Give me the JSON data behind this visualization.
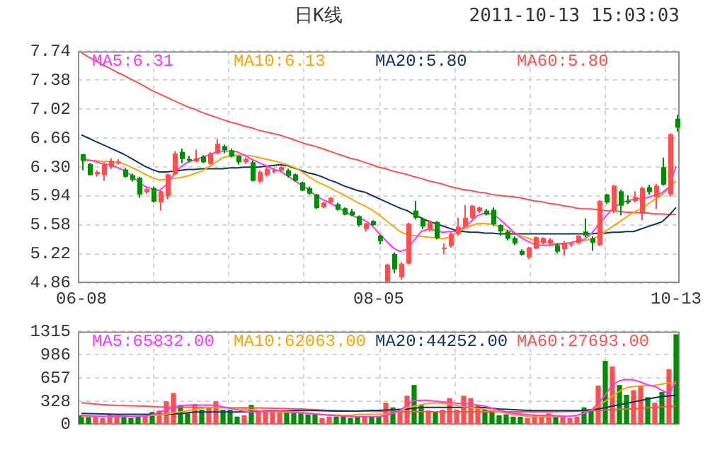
{
  "chart_data": [
    {
      "type": "candlestick",
      "title": "日K线",
      "subtitle": "2011-10-13 15:03:03",
      "categories": [
        "06-08",
        null,
        null,
        null,
        null,
        null,
        null,
        null,
        null,
        null,
        null,
        null,
        null,
        null,
        null,
        null,
        null,
        null,
        null,
        null,
        null,
        null,
        null,
        null,
        null,
        null,
        null,
        null,
        null,
        null,
        null,
        null,
        null,
        null,
        null,
        null,
        null,
        null,
        null,
        null,
        null,
        null,
        "08-05",
        null,
        null,
        null,
        null,
        null,
        null,
        null,
        null,
        null,
        null,
        null,
        null,
        null,
        null,
        null,
        null,
        null,
        null,
        null,
        null,
        null,
        null,
        null,
        null,
        null,
        null,
        null,
        null,
        null,
        null,
        null,
        null,
        null,
        null,
        null,
        null,
        null,
        null,
        null,
        null,
        null,
        "10-13"
      ],
      "ohlc": [
        [
          6.46,
          6.46,
          6.26,
          6.38
        ],
        [
          6.34,
          6.35,
          6.2,
          6.2
        ],
        [
          6.21,
          6.26,
          6.18,
          6.24
        ],
        [
          6.2,
          6.36,
          6.13,
          6.33
        ],
        [
          6.3,
          6.41,
          6.28,
          6.38
        ],
        [
          6.36,
          6.4,
          6.33,
          6.37
        ],
        [
          6.27,
          6.29,
          6.17,
          6.18
        ],
        [
          6.2,
          6.22,
          6.12,
          6.14
        ],
        [
          6.17,
          6.18,
          5.92,
          5.96
        ],
        [
          5.99,
          6.05,
          5.97,
          6.03
        ],
        [
          6.04,
          6.06,
          5.86,
          5.87
        ],
        [
          5.86,
          6.01,
          5.76,
          6.0
        ],
        [
          5.94,
          6.22,
          5.9,
          6.21
        ],
        [
          6.21,
          6.5,
          6.2,
          6.47
        ],
        [
          6.49,
          6.53,
          6.35,
          6.4
        ],
        [
          6.4,
          6.44,
          6.36,
          6.38
        ],
        [
          6.37,
          6.52,
          6.36,
          6.41
        ],
        [
          6.43,
          6.45,
          6.35,
          6.36
        ],
        [
          6.34,
          6.49,
          6.33,
          6.47
        ],
        [
          6.47,
          6.65,
          6.46,
          6.59
        ],
        [
          6.56,
          6.58,
          6.47,
          6.51
        ],
        [
          6.51,
          6.53,
          6.42,
          6.43
        ],
        [
          6.44,
          6.44,
          6.33,
          6.36
        ],
        [
          6.36,
          6.42,
          6.34,
          6.4
        ],
        [
          6.36,
          6.38,
          6.12,
          6.13
        ],
        [
          6.12,
          6.26,
          6.1,
          6.24
        ],
        [
          6.2,
          6.3,
          6.18,
          6.28
        ],
        [
          6.25,
          6.29,
          6.22,
          6.26
        ],
        [
          6.26,
          6.31,
          6.24,
          6.3
        ],
        [
          6.26,
          6.28,
          6.17,
          6.19
        ],
        [
          6.21,
          6.22,
          6.12,
          6.13
        ],
        [
          6.11,
          6.12,
          6.0,
          6.01
        ],
        [
          6.04,
          6.06,
          5.96,
          5.97
        ],
        [
          5.96,
          5.97,
          5.78,
          5.79
        ],
        [
          5.8,
          5.87,
          5.79,
          5.86
        ],
        [
          5.86,
          5.93,
          5.84,
          5.92
        ],
        [
          5.84,
          5.86,
          5.76,
          5.77
        ],
        [
          5.79,
          5.8,
          5.7,
          5.71
        ],
        [
          5.75,
          5.78,
          5.69,
          5.7
        ],
        [
          5.69,
          5.7,
          5.56,
          5.58
        ],
        [
          5.53,
          5.61,
          5.5,
          5.6
        ],
        [
          5.63,
          5.64,
          5.57,
          5.58
        ],
        [
          5.45,
          5.46,
          5.34,
          5.38
        ],
        [
          4.88,
          5.1,
          4.86,
          5.09
        ],
        [
          5.22,
          5.24,
          4.98,
          5.03
        ],
        [
          4.93,
          5.12,
          4.9,
          5.1
        ],
        [
          5.1,
          5.61,
          5.09,
          5.6
        ],
        [
          5.76,
          5.88,
          5.65,
          5.67
        ],
        [
          5.66,
          5.67,
          5.53,
          5.56
        ],
        [
          5.52,
          5.64,
          5.5,
          5.62
        ],
        [
          5.62,
          5.63,
          5.4,
          5.42
        ],
        [
          5.29,
          5.35,
          5.22,
          5.3
        ],
        [
          5.32,
          5.49,
          5.3,
          5.47
        ],
        [
          5.47,
          5.67,
          5.45,
          5.56
        ],
        [
          5.56,
          5.83,
          5.55,
          5.67
        ],
        [
          5.67,
          5.83,
          5.65,
          5.82
        ],
        [
          5.75,
          5.81,
          5.73,
          5.8
        ],
        [
          5.76,
          5.78,
          5.7,
          5.71
        ],
        [
          5.77,
          5.8,
          5.57,
          5.59
        ],
        [
          5.58,
          5.59,
          5.45,
          5.5
        ],
        [
          5.5,
          5.52,
          5.39,
          5.41
        ],
        [
          5.42,
          5.44,
          5.33,
          5.35
        ],
        [
          5.26,
          5.28,
          5.2,
          5.21
        ],
        [
          5.18,
          5.31,
          5.16,
          5.3
        ],
        [
          5.29,
          5.44,
          5.28,
          5.43
        ],
        [
          5.36,
          5.43,
          5.34,
          5.42
        ],
        [
          5.35,
          5.42,
          5.33,
          5.4
        ],
        [
          5.33,
          5.35,
          5.23,
          5.25
        ],
        [
          5.28,
          5.38,
          5.2,
          5.36
        ],
        [
          5.34,
          5.37,
          5.31,
          5.35
        ],
        [
          5.36,
          5.47,
          5.34,
          5.45
        ],
        [
          5.5,
          5.66,
          5.43,
          5.45
        ],
        [
          5.42,
          5.44,
          5.26,
          5.36
        ],
        [
          5.33,
          5.89,
          5.32,
          5.88
        ],
        [
          5.96,
          5.97,
          5.84,
          5.86
        ],
        [
          5.75,
          6.08,
          5.73,
          6.07
        ],
        [
          6.0,
          6.02,
          5.7,
          5.82
        ],
        [
          5.88,
          5.95,
          5.84,
          5.86
        ],
        [
          5.88,
          6.0,
          5.86,
          5.93
        ],
        [
          5.73,
          6.06,
          5.64,
          6.04
        ],
        [
          6.05,
          6.08,
          5.96,
          5.99
        ],
        [
          5.93,
          6.09,
          5.78,
          6.07
        ],
        [
          6.3,
          6.42,
          6.07,
          6.08
        ],
        [
          5.96,
          6.72,
          5.93,
          6.71
        ],
        [
          6.9,
          6.95,
          6.74,
          6.79
        ]
      ],
      "colors": [
        "#008c00",
        "#008c00",
        "#ff4f4f",
        "#ff4f4f",
        "#ff4f4f",
        "#ff4f4f",
        "#008c00",
        "#008c00",
        "#008c00",
        "#ff4f4f",
        "#008c00",
        "#ff4f4f",
        "#ff4f4f",
        "#ff4f4f",
        "#008c00",
        "#008c00",
        "#ff4f4f",
        "#008c00",
        "#ff4f4f",
        "#ff4f4f",
        "#008c00",
        "#008c00",
        "#008c00",
        "#ff4f4f",
        "#008c00",
        "#ff4f4f",
        "#ff4f4f",
        "#ff4f4f",
        "#ff4f4f",
        "#008c00",
        "#008c00",
        "#008c00",
        "#008c00",
        "#008c00",
        "#ff4f4f",
        "#ff4f4f",
        "#008c00",
        "#008c00",
        "#008c00",
        "#008c00",
        "#ff4f4f",
        "#008c00",
        "#008c00",
        "#ff4f4f",
        "#008c00",
        "#ff4f4f",
        "#ff4f4f",
        "#008c00",
        "#008c00",
        "#ff4f4f",
        "#008c00",
        "#ff4f4f",
        "#ff4f4f",
        "#ff4f4f",
        "#ff4f4f",
        "#ff4f4f",
        "#ff4f4f",
        "#008c00",
        "#008c00",
        "#008c00",
        "#008c00",
        "#008c00",
        "#008c00",
        "#ff4f4f",
        "#ff4f4f",
        "#ff4f4f",
        "#ff4f4f",
        "#008c00",
        "#ff4f4f",
        "#ff4f4f",
        "#ff4f4f",
        "#008c00",
        "#008c00",
        "#ff4f4f",
        "#008c00",
        "#ff4f4f",
        "#008c00",
        "#008c00",
        "#ff4f4f",
        "#ff4f4f",
        "#008c00",
        "#ff4f4f",
        "#008c00",
        "#ff4f4f",
        "#008c00"
      ],
      "series": [
        {
          "type": "line",
          "name": "MA5:6.31",
          "color": "#ff33ff",
          "values": [
            6.41,
            6.39,
            6.37,
            6.34,
            6.33,
            6.3,
            6.26,
            6.2,
            6.12,
            6.06,
            6.03,
            6.01,
            6.08,
            6.2,
            6.3,
            6.36,
            6.39,
            6.42,
            6.45,
            6.49,
            6.5,
            6.5,
            6.49,
            6.45,
            6.4,
            6.36,
            6.32,
            6.28,
            6.25,
            6.2,
            6.14,
            6.08,
            6.03,
            5.95,
            5.9,
            5.86,
            5.81,
            5.76,
            5.71,
            5.67,
            5.64,
            5.58,
            5.48,
            5.39,
            5.3,
            5.25,
            5.28,
            5.39,
            5.5,
            5.53,
            5.51,
            5.49,
            5.5,
            5.5,
            5.55,
            5.62,
            5.7,
            5.73,
            5.72,
            5.66,
            5.58,
            5.5,
            5.43,
            5.38,
            5.34,
            5.33,
            5.33,
            5.34,
            5.35,
            5.36,
            5.38,
            5.4,
            5.47,
            5.58,
            5.68,
            5.78,
            5.84,
            5.88,
            5.9,
            5.91,
            5.92,
            5.95,
            5.98,
            6.05,
            6.31
          ]
        },
        {
          "type": "line",
          "name": "MA10:6.13",
          "color": "#ffa200",
          "values": [
            6.37,
            6.38,
            6.38,
            6.37,
            6.37,
            6.36,
            6.34,
            6.3,
            6.26,
            6.21,
            6.17,
            6.14,
            6.15,
            6.16,
            6.17,
            6.19,
            6.22,
            6.25,
            6.3,
            6.36,
            6.42,
            6.44,
            6.45,
            6.45,
            6.44,
            6.42,
            6.4,
            6.38,
            6.36,
            6.33,
            6.3,
            6.25,
            6.19,
            6.13,
            6.09,
            6.05,
            6.0,
            5.96,
            5.91,
            5.86,
            5.82,
            5.77,
            5.71,
            5.64,
            5.57,
            5.5,
            5.46,
            5.45,
            5.44,
            5.43,
            5.42,
            5.41,
            5.43,
            5.48,
            5.53,
            5.57,
            5.6,
            5.6,
            5.59,
            5.56,
            5.52,
            5.49,
            5.45,
            5.42,
            5.39,
            5.37,
            5.36,
            5.35,
            5.35,
            5.36,
            5.38,
            5.39,
            5.4,
            5.44,
            5.5,
            5.56,
            5.62,
            5.68,
            5.74,
            5.78,
            5.84,
            5.9,
            5.95,
            6.04,
            6.13
          ]
        },
        {
          "type": "line",
          "name": "MA20:5.80",
          "color": "#0c3566",
          "values": [
            6.7,
            6.66,
            6.62,
            6.58,
            6.54,
            6.5,
            6.46,
            6.41,
            6.36,
            6.31,
            6.27,
            6.24,
            6.24,
            6.25,
            6.26,
            6.27,
            6.27,
            6.28,
            6.28,
            6.28,
            6.28,
            6.29,
            6.29,
            6.3,
            6.3,
            6.3,
            6.31,
            6.32,
            6.33,
            6.32,
            6.29,
            6.26,
            6.23,
            6.21,
            6.18,
            6.14,
            6.11,
            6.07,
            6.04,
            6.01,
            5.99,
            5.95,
            5.91,
            5.87,
            5.83,
            5.79,
            5.76,
            5.71,
            5.67,
            5.63,
            5.6,
            5.57,
            5.54,
            5.51,
            5.5,
            5.49,
            5.49,
            5.48,
            5.48,
            5.47,
            5.47,
            5.47,
            5.47,
            5.47,
            5.47,
            5.47,
            5.47,
            5.47,
            5.47,
            5.47,
            5.47,
            5.47,
            5.47,
            5.48,
            5.48,
            5.49,
            5.49,
            5.5,
            5.5,
            5.53,
            5.56,
            5.59,
            5.62,
            5.7,
            5.8
          ]
        },
        {
          "type": "line",
          "name": "MA60:5.80",
          "color": "#ff4f4f",
          "values": [
            7.72,
            7.67,
            7.62,
            7.57,
            7.53,
            7.48,
            7.44,
            7.39,
            7.35,
            7.3,
            7.25,
            7.21,
            7.17,
            7.13,
            7.09,
            7.05,
            7.02,
            6.98,
            6.95,
            6.92,
            6.89,
            6.86,
            6.84,
            6.81,
            6.79,
            6.76,
            6.74,
            6.72,
            6.7,
            6.67,
            6.64,
            6.61,
            6.58,
            6.56,
            6.53,
            6.5,
            6.47,
            6.44,
            6.41,
            6.39,
            6.36,
            6.33,
            6.3,
            6.28,
            6.25,
            6.23,
            6.21,
            6.18,
            6.16,
            6.13,
            6.11,
            6.09,
            6.06,
            6.04,
            6.02,
            6.01,
            5.99,
            5.98,
            5.96,
            5.95,
            5.94,
            5.93,
            5.92,
            5.9,
            5.88,
            5.87,
            5.85,
            5.84,
            5.82,
            5.81,
            5.79,
            5.78,
            5.78,
            5.77,
            5.76,
            5.76,
            5.75,
            5.74,
            5.74,
            5.73,
            5.73,
            5.72,
            5.72,
            5.71,
            5.71
          ]
        }
      ],
      "ylim": [
        4.86,
        7.74
      ],
      "yticks": [
        4.86,
        5.22,
        5.58,
        5.94,
        {
          "value": 6.3,
          "label": "6.30"
        },
        6.66,
        7.02,
        7.38,
        7.74
      ],
      "grid": true,
      "legend": "top",
      "marker": "none"
    },
    {
      "type": "bar",
      "categories": [
        null,
        null,
        null,
        null,
        null,
        null,
        null,
        null,
        null,
        null,
        null,
        null,
        null,
        null,
        null,
        null,
        null,
        null,
        null,
        null,
        null,
        null,
        null,
        null,
        null,
        null,
        null,
        null,
        null,
        null,
        null,
        null,
        null,
        null,
        null,
        null,
        null,
        null,
        null,
        null,
        null,
        null,
        null,
        null,
        null,
        null,
        null,
        null,
        null,
        null,
        null,
        null,
        null,
        null,
        null,
        null,
        null,
        null,
        null,
        null,
        null,
        null,
        null,
        null,
        null,
        null,
        null,
        null,
        null,
        null,
        null,
        null,
        null,
        null,
        null,
        null,
        null,
        null,
        null,
        null,
        null,
        null,
        null,
        null,
        null
      ],
      "series": [
        {
          "type": "bar",
          "values": [
            131,
            131,
            112,
            92,
            144,
            144,
            112,
            92,
            118,
            131,
            177,
            197,
            328,
            446,
            276,
            157,
            289,
            210,
            243,
            328,
            210,
            210,
            112,
            131,
            276,
            197,
            197,
            197,
            197,
            177,
            177,
            177,
            144,
            144,
            92,
            112,
            112,
            112,
            92,
            112,
            112,
            112,
            112,
            308,
            243,
            210,
            407,
            558,
            276,
            197,
            177,
            210,
            374,
            210,
            407,
            374,
            276,
            210,
            210,
            131,
            144,
            112,
            112,
            92,
            144,
            112,
            157,
            112,
            112,
            92,
            112,
            243,
            210,
            551,
            899,
            820,
            558,
            420,
            485,
            551,
            387,
            308,
            459,
            781,
            1273
          ],
          "colors": [
            "#008c00",
            "#008c00",
            "#ff4f4f",
            "#ff4f4f",
            "#ff4f4f",
            "#ff4f4f",
            "#008c00",
            "#008c00",
            "#008c00",
            "#ff4f4f",
            "#008c00",
            "#ff4f4f",
            "#ff4f4f",
            "#ff4f4f",
            "#008c00",
            "#008c00",
            "#ff4f4f",
            "#008c00",
            "#ff4f4f",
            "#ff4f4f",
            "#008c00",
            "#008c00",
            "#008c00",
            "#ff4f4f",
            "#008c00",
            "#ff4f4f",
            "#ff4f4f",
            "#ff4f4f",
            "#ff4f4f",
            "#008c00",
            "#008c00",
            "#008c00",
            "#008c00",
            "#008c00",
            "#ff4f4f",
            "#ff4f4f",
            "#008c00",
            "#008c00",
            "#008c00",
            "#008c00",
            "#ff4f4f",
            "#008c00",
            "#008c00",
            "#ff4f4f",
            "#008c00",
            "#ff4f4f",
            "#ff4f4f",
            "#008c00",
            "#008c00",
            "#ff4f4f",
            "#008c00",
            "#ff4f4f",
            "#ff4f4f",
            "#ff4f4f",
            "#ff4f4f",
            "#ff4f4f",
            "#ff4f4f",
            "#008c00",
            "#008c00",
            "#008c00",
            "#008c00",
            "#008c00",
            "#008c00",
            "#ff4f4f",
            "#ff4f4f",
            "#ff4f4f",
            "#ff4f4f",
            "#008c00",
            "#ff4f4f",
            "#ff4f4f",
            "#ff4f4f",
            "#008c00",
            "#008c00",
            "#ff4f4f",
            "#008c00",
            "#ff4f4f",
            "#008c00",
            "#008c00",
            "#ff4f4f",
            "#ff4f4f",
            "#008c00",
            "#ff4f4f",
            "#008c00",
            "#ff4f4f",
            "#008c00"
          ]
        },
        {
          "type": "line",
          "name": "MA5:65832.00",
          "color": "#ff33ff",
          "values": [
            131,
            125,
            120,
            118,
            120,
            125,
            120,
            115,
            115,
            120,
            140,
            170,
            210,
            240,
            270,
            276,
            276,
            276,
            276,
            276,
            250,
            230,
            210,
            190,
            180,
            177,
            185,
            190,
            197,
            190,
            180,
            170,
            160,
            150,
            140,
            130,
            125,
            120,
            118,
            112,
            112,
            112,
            112,
            130,
            160,
            200,
            280,
            340,
            341,
            341,
            330,
            320,
            310,
            300,
            300,
            290,
            276,
            260,
            230,
            200,
            180,
            160,
            150,
            140,
            131,
            131,
            131,
            125,
            120,
            118,
            131,
            160,
            200,
            300,
            420,
            560,
            617,
            636,
            630,
            600,
            560,
            538,
            480,
            440,
            615
          ]
        },
        {
          "type": "line",
          "name": "MA10:62063.00",
          "color": "#ffa200",
          "values": [
            112,
            112,
            112,
            110,
            110,
            112,
            115,
            115,
            118,
            120,
            130,
            140,
            150,
            165,
            180,
            195,
            210,
            230,
            243,
            243,
            243,
            240,
            230,
            220,
            210,
            200,
            190,
            185,
            180,
            177,
            170,
            165,
            160,
            150,
            145,
            140,
            135,
            131,
            131,
            144,
            144,
            144,
            144,
            144,
            160,
            190,
            243,
            260,
            280,
            300,
            308,
            300,
            290,
            270,
            250,
            243,
            230,
            215,
            200,
            180,
            160,
            140,
            131,
            118,
            112,
            112,
            112,
            112,
            112,
            115,
            130,
            160,
            200,
            260,
            330,
            400,
            470,
            520,
            538,
            545,
            550,
            555,
            570,
            590,
            580
          ]
        },
        {
          "type": "line",
          "name": "MA20:44252.00",
          "color": "#0c3566",
          "values": [
            158,
            155,
            152,
            150,
            148,
            146,
            144,
            144,
            144,
            144,
            144,
            144,
            144,
            148,
            155,
            165,
            177,
            177,
            177,
            177,
            177,
            177,
            177,
            180,
            185,
            190,
            197,
            197,
            197,
            197,
            197,
            197,
            197,
            197,
            195,
            193,
            190,
            190,
            190,
            190,
            195,
            200,
            200,
            205,
            210,
            215,
            220,
            230,
            243,
            243,
            243,
            243,
            243,
            243,
            243,
            243,
            243,
            240,
            230,
            220,
            215,
            210,
            205,
            200,
            197,
            197,
            197,
            197,
            197,
            197,
            197,
            200,
            210,
            220,
            240,
            260,
            280,
            300,
            320,
            340,
            360,
            380,
            395,
            405,
            414
          ]
        },
        {
          "type": "line",
          "name": "MA60:27693.00",
          "color": "#ff4f4f",
          "values": [
            308,
            300,
            290,
            280,
            275,
            270,
            268,
            265,
            263,
            260,
            255,
            250,
            248,
            246,
            245,
            245,
            244,
            243,
            242,
            241,
            240,
            239,
            238,
            237,
            236,
            235,
            233,
            230,
            228,
            225,
            222,
            220,
            215,
            210,
            205,
            200,
            197,
            195,
            193,
            190,
            190,
            188,
            186,
            185,
            184,
            184,
            183,
            183,
            182,
            182,
            181,
            181,
            180,
            180,
            180,
            180,
            180,
            180,
            180,
            180,
            180,
            180,
            180,
            180,
            180,
            180,
            180,
            182,
            184,
            186,
            188,
            190,
            195,
            200,
            205,
            210,
            215,
            220,
            225,
            230,
            238,
            245,
            250,
            255,
            259
          ]
        }
      ],
      "ylim": [
        0,
        1315
      ],
      "yticks": [
        0,
        328,
        657,
        986,
        1315
      ],
      "grid": true,
      "legend": "top",
      "marker": "none"
    }
  ]
}
